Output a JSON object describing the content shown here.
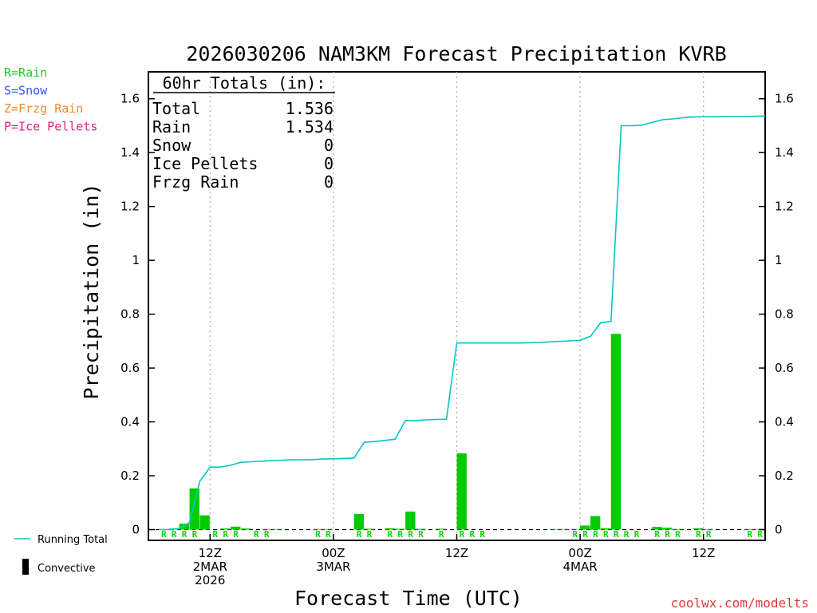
{
  "chart_data": {
    "type": "bar",
    "title": "2026030206 NAM3KM Forecast Precipitation KVRB",
    "ylabel": "Precipitation (in)",
    "xlabel": "Forecast Time (UTC)",
    "ylim": [
      -0.04,
      1.7
    ],
    "xlim": [
      6,
      66
    ],
    "y_ticks": [
      0,
      0.2,
      0.4,
      0.6,
      0.8,
      1,
      1.2,
      1.4,
      1.6
    ],
    "y_tick_labels": [
      "0",
      "0.2",
      "0.4",
      "0.6",
      "0.8",
      "1",
      "1.2",
      "1.4",
      "1.6"
    ],
    "x_ticks": [
      {
        "x": 12,
        "lines": [
          "12Z",
          "2MAR",
          "2026"
        ]
      },
      {
        "x": 24,
        "lines": [
          "00Z",
          "3MAR"
        ]
      },
      {
        "x": 36,
        "lines": [
          "12Z"
        ]
      },
      {
        "x": 48,
        "lines": [
          "00Z",
          "4MAR"
        ]
      },
      {
        "x": 60,
        "lines": [
          "12Z"
        ]
      }
    ],
    "grid": "vertical dotted at x ticks",
    "hourly_precip": {
      "name": "Convective",
      "color": "#00cc00",
      "x": [
        9,
        10,
        11,
        12,
        13,
        14,
        15,
        16,
        18,
        19,
        23,
        24,
        27,
        28,
        30,
        31,
        32,
        33,
        35,
        37,
        38,
        39,
        40,
        41,
        43,
        44,
        45,
        46,
        47,
        48,
        49,
        50,
        51,
        52,
        53,
        54,
        56,
        57,
        58,
        60,
        61,
        65,
        66
      ],
      "values": [
        0.004,
        0.022,
        0.153,
        0.053,
        0.0,
        0.004,
        0.011,
        0.004,
        0.002,
        0.002,
        0.002,
        0.002,
        0.058,
        0.003,
        0.005,
        0.003,
        0.067,
        0.003,
        0.003,
        0.283,
        0.0,
        0.0,
        0.0,
        0.0,
        0.0,
        0.0,
        0.0,
        0.002,
        0.002,
        0.002,
        0.015,
        0.05,
        0.005,
        0.727,
        0.0,
        0.0,
        0.01,
        0.007,
        0.002,
        0.005,
        0.002,
        0.002,
        0.002
      ]
    },
    "running_total": {
      "name": "Running Total",
      "color": "#00c8c8",
      "x": [
        7,
        8,
        9,
        10,
        11,
        12,
        13,
        14,
        15,
        16,
        17,
        18,
        19,
        20,
        21,
        22,
        23,
        24,
        25,
        26,
        27,
        28,
        29,
        30,
        31,
        32,
        33,
        34,
        35,
        36,
        37,
        38,
        39,
        40,
        41,
        42,
        43,
        44,
        45,
        46,
        47,
        48,
        49,
        50,
        51,
        52,
        53,
        54,
        55,
        56,
        57,
        58,
        59,
        60,
        61,
        62,
        63,
        64,
        65,
        66
      ],
      "values": [
        0.0,
        0.0,
        0.004,
        0.026,
        0.179,
        0.232,
        0.232,
        0.239,
        0.25,
        0.252,
        0.254,
        0.256,
        0.258,
        0.259,
        0.259,
        0.26,
        0.262,
        0.263,
        0.264,
        0.266,
        0.324,
        0.327,
        0.331,
        0.336,
        0.405,
        0.405,
        0.408,
        0.409,
        0.41,
        0.693,
        0.693,
        0.693,
        0.693,
        0.693,
        0.693,
        0.693,
        0.694,
        0.695,
        0.697,
        0.699,
        0.701,
        0.703,
        0.718,
        0.768,
        0.773,
        1.5,
        1.5,
        1.502,
        1.512,
        1.522,
        1.525,
        1.53,
        1.532,
        1.533,
        1.533,
        1.534,
        1.534,
        1.534,
        1.535,
        1.536
      ]
    },
    "precip_type_labels": {
      "letter": "R",
      "color": "#00dd00",
      "x": [
        8,
        9,
        10,
        11,
        13,
        14,
        15,
        17,
        18,
        23,
        24,
        27,
        28,
        30,
        31,
        32,
        33,
        35,
        37,
        38,
        39,
        48,
        49,
        50,
        51,
        52,
        53,
        54,
        56,
        57,
        58,
        60,
        61,
        65,
        66
      ]
    },
    "legend_precip_types": [
      {
        "text": "R=Rain",
        "color": "#22cc22"
      },
      {
        "text": "S=Snow",
        "color": "#3355ff"
      },
      {
        "text": "Z=Frzg Rain",
        "color": "#f08a30"
      },
      {
        "text": "P=Ice Pellets",
        "color": "#e0227a"
      }
    ],
    "totals_box": {
      "header": "60hr Totals (in):",
      "rows": [
        {
          "label": "Total",
          "value": "1.536"
        },
        {
          "label": "Rain",
          "value": "1.534"
        },
        {
          "label": "Snow",
          "value": "0"
        },
        {
          "label": "Ice Pellets",
          "value": "0"
        },
        {
          "label": "Frzg Rain",
          "value": "0"
        }
      ]
    },
    "legend_bottom": [
      {
        "text": "Running Total",
        "kind": "line",
        "color": "#00c8c8"
      },
      {
        "text": "Convective",
        "kind": "bar",
        "color": "#000000"
      }
    ],
    "credit": "coolwx.com/modelts"
  }
}
